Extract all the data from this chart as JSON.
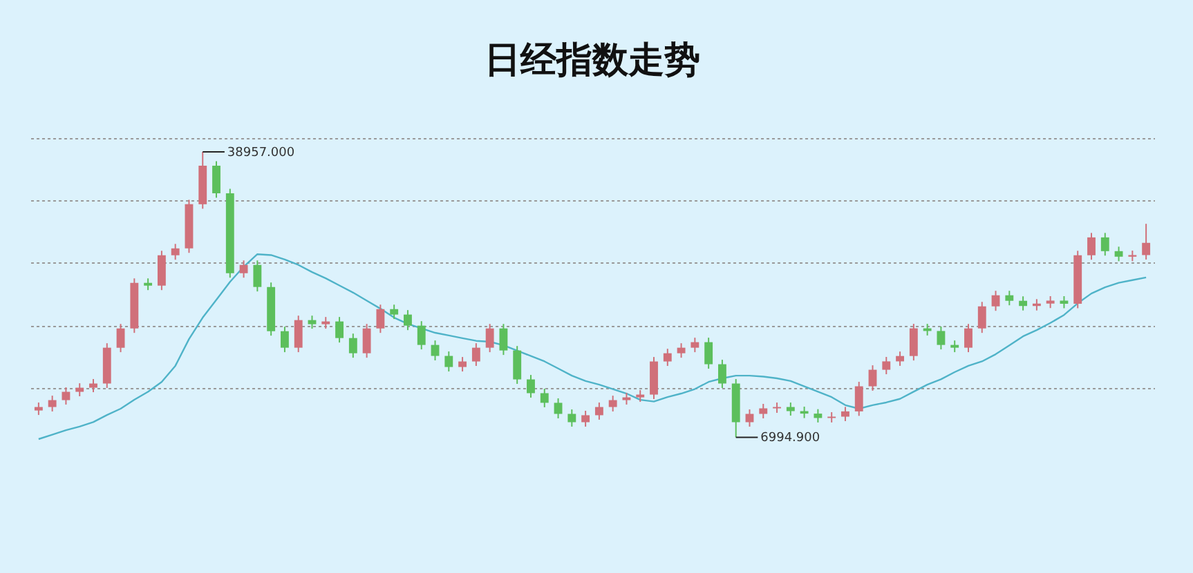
{
  "chart_data": {
    "type": "candlestick",
    "title": "日经指数走势",
    "categories": [
      null,
      null,
      null,
      null,
      null,
      null,
      null,
      null,
      null,
      null,
      null,
      null,
      null,
      null,
      null,
      null,
      null,
      null,
      null,
      null,
      null,
      null,
      null,
      null,
      null,
      null,
      null,
      null,
      null,
      null,
      null,
      null,
      null,
      null,
      null,
      null,
      null,
      null,
      null,
      null,
      null,
      null,
      null,
      null,
      null,
      null,
      null,
      null,
      null,
      null,
      null,
      null,
      null,
      null,
      null,
      null,
      null,
      null,
      null,
      null,
      null,
      null,
      null,
      null,
      null,
      null,
      null,
      null,
      null,
      null,
      null,
      null,
      null,
      null,
      null,
      null,
      null,
      null,
      null,
      null,
      null,
      null
    ],
    "ohlc": [
      [
        10000,
        10890,
        9500,
        10390
      ],
      [
        10390,
        11660,
        9890,
        11160
      ],
      [
        11160,
        12590,
        10660,
        12090
      ],
      [
        12090,
        13050,
        11590,
        12550
      ],
      [
        12550,
        13520,
        12050,
        13020
      ],
      [
        13020,
        17530,
        12520,
        17030
      ],
      [
        17030,
        19690,
        16530,
        19190
      ],
      [
        19190,
        24790,
        18690,
        24290
      ],
      [
        24290,
        24790,
        23480,
        23980
      ],
      [
        23980,
        27880,
        23480,
        27380
      ],
      [
        27380,
        28650,
        26880,
        28150
      ],
      [
        28150,
        33590,
        27650,
        33090
      ],
      [
        33090,
        38957,
        32590,
        37410
      ],
      [
        37410,
        37910,
        33820,
        34320
      ],
      [
        34320,
        34820,
        24870,
        25370
      ],
      [
        25370,
        26800,
        24870,
        26300
      ],
      [
        26300,
        26800,
        23330,
        23830
      ],
      [
        23830,
        24330,
        18380,
        18880
      ],
      [
        18880,
        19380,
        16530,
        17030
      ],
      [
        17030,
        20620,
        16530,
        20120
      ],
      [
        20120,
        20620,
        19160,
        19660
      ],
      [
        19660,
        20470,
        19160,
        19970
      ],
      [
        19970,
        20470,
        17610,
        18110
      ],
      [
        18110,
        18610,
        15910,
        16410
      ],
      [
        16410,
        19690,
        15910,
        19190
      ],
      [
        19190,
        21850,
        18690,
        21350
      ],
      [
        21350,
        21850,
        20240,
        20740
      ],
      [
        20740,
        21240,
        19000,
        19500
      ],
      [
        19500,
        20000,
        16840,
        17340
      ],
      [
        17340,
        17840,
        15610,
        16110
      ],
      [
        16110,
        16610,
        14370,
        14870
      ],
      [
        14870,
        15990,
        14370,
        15490
      ],
      [
        15490,
        17530,
        14990,
        17030
      ],
      [
        17030,
        19690,
        16530,
        19190
      ],
      [
        19190,
        19690,
        16220,
        16720
      ],
      [
        16720,
        17220,
        12980,
        13480
      ],
      [
        13480,
        13980,
        11440,
        11940
      ],
      [
        11940,
        12440,
        10360,
        10860
      ],
      [
        10860,
        11360,
        9120,
        9620
      ],
      [
        9620,
        10120,
        8190,
        8690
      ],
      [
        8690,
        9970,
        8190,
        9470
      ],
      [
        9470,
        10890,
        8970,
        10390
      ],
      [
        10390,
        11660,
        9890,
        11160
      ],
      [
        11160,
        11970,
        10660,
        11470
      ],
      [
        11470,
        12280,
        10970,
        11780
      ],
      [
        11780,
        15990,
        11280,
        15490
      ],
      [
        15490,
        16910,
        14990,
        16410
      ],
      [
        16410,
        17530,
        15910,
        17030
      ],
      [
        17030,
        18150,
        16530,
        17650
      ],
      [
        17650,
        18150,
        14680,
        15180
      ],
      [
        15180,
        15680,
        12520,
        13020
      ],
      [
        13020,
        13520,
        6994.9,
        8690
      ],
      [
        8690,
        10120,
        8190,
        9620
      ],
      [
        9620,
        10740,
        9120,
        10240
      ],
      [
        10240,
        10890,
        9740,
        10390
      ],
      [
        10390,
        10890,
        9430,
        9930
      ],
      [
        9930,
        10430,
        9150,
        9650
      ],
      [
        9650,
        10150,
        8660,
        9160
      ],
      [
        9160,
        9810,
        8660,
        9310
      ],
      [
        9310,
        10400,
        8810,
        9900
      ],
      [
        9900,
        13210,
        9400,
        12710
      ],
      [
        12710,
        15060,
        12210,
        14560
      ],
      [
        14560,
        16000,
        14060,
        15500
      ],
      [
        15500,
        16600,
        15000,
        16100
      ],
      [
        16100,
        19700,
        15600,
        19200
      ],
      [
        19200,
        19700,
        18400,
        18900
      ],
      [
        18900,
        19400,
        16840,
        17340
      ],
      [
        17340,
        17840,
        16530,
        17030
      ],
      [
        17030,
        19690,
        16530,
        19190
      ],
      [
        19190,
        22160,
        18690,
        21660
      ],
      [
        21660,
        23400,
        21160,
        22900
      ],
      [
        22900,
        23400,
        21780,
        22280
      ],
      [
        22280,
        22780,
        21200,
        21700
      ],
      [
        21700,
        22470,
        21200,
        21970
      ],
      [
        21970,
        22800,
        21470,
        22300
      ],
      [
        22300,
        22800,
        21450,
        21950
      ],
      [
        21950,
        27880,
        21450,
        27380
      ],
      [
        27380,
        29880,
        26880,
        29380
      ],
      [
        29380,
        29880,
        27340,
        27840
      ],
      [
        27840,
        28340,
        26720,
        27220
      ],
      [
        27220,
        27900,
        26720,
        27400
      ],
      [
        27400,
        30900,
        26900,
        28770
      ]
    ],
    "series": [
      {
        "type": "line",
        "color": "#4fb3c8",
        "values": [
          6800,
          7300,
          7800,
          8200,
          8700,
          9500,
          10200,
          11200,
          12100,
          13200,
          15000,
          18000,
          20400,
          22400,
          24400,
          26100,
          27500,
          27400,
          26900,
          26300,
          25500,
          24800,
          24000,
          23200,
          22300,
          21400,
          20400,
          19700,
          19200,
          18700,
          18400,
          18100,
          17800,
          17700,
          17300,
          16700,
          16100,
          15500,
          14700,
          13900,
          13300,
          12900,
          12400,
          11900,
          11200,
          11000,
          11500,
          11900,
          12400,
          13200,
          13600,
          13900,
          13900,
          13800,
          13600,
          13300,
          12700,
          12100,
          11500,
          10600,
          10200,
          10600,
          10900,
          11300,
          12100,
          12900,
          13500,
          14300,
          15000,
          15500,
          16300,
          17300,
          18300,
          19000,
          19800,
          20700,
          22000,
          23100,
          23800,
          24300,
          24600,
          24900
        ]
      }
    ],
    "yticks": [
      {
        "value": 12550,
        "label": null
      },
      {
        "value": 19500,
        "label": null
      },
      {
        "value": 26600,
        "label": null
      },
      {
        "value": 33550,
        "label": null
      },
      {
        "value": 40500,
        "label": null
      }
    ],
    "grid": "y",
    "tick_labels": false,
    "annotations": [
      "38957.000",
      "6994.900"
    ]
  }
}
